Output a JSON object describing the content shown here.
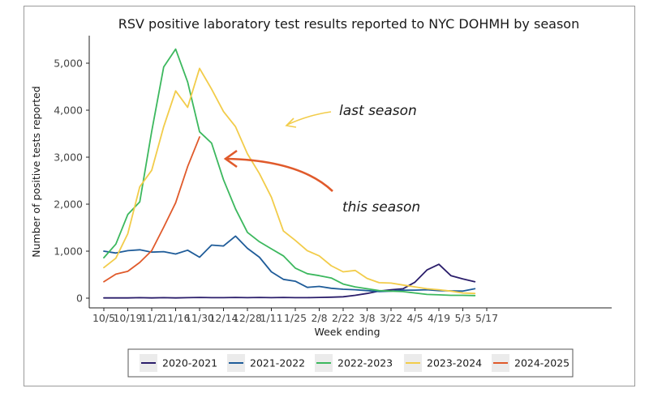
{
  "chart_data": {
    "type": "line",
    "title": "RSV positive laboratory test results reported to NYC DOHMH by season",
    "xlabel": "Week ending",
    "ylabel": "Number of positive tests reported",
    "ylim": [
      0,
      5500
    ],
    "yticks": [
      0,
      1000,
      2000,
      3000,
      4000,
      5000
    ],
    "ytick_labels": [
      "0",
      "1,000",
      "2,000",
      "3,000",
      "4,000",
      "5,000"
    ],
    "xtick_labels": [
      "10/5",
      "10/19",
      "11/2",
      "11/16",
      "11/30",
      "12/14",
      "12/28",
      "1/11",
      "1/25",
      "2/8",
      "2/22",
      "3/8",
      "3/22",
      "4/5",
      "4/19",
      "5/3",
      "5/17"
    ],
    "grid": false,
    "legend_position": "bottom",
    "series": [
      {
        "name": "2020-2021",
        "color": "#2b1e6b",
        "values": [
          5,
          5,
          5,
          10,
          5,
          10,
          5,
          10,
          15,
          10,
          10,
          15,
          10,
          15,
          10,
          15,
          10,
          10,
          15,
          20,
          30,
          60,
          100,
          150,
          180,
          200,
          340,
          600,
          720,
          480,
          410,
          350
        ]
      },
      {
        "name": "2021-2022",
        "color": "#1f5c99",
        "values": [
          1000,
          960,
          1010,
          1030,
          980,
          990,
          940,
          1020,
          870,
          1130,
          1110,
          1320,
          1060,
          870,
          560,
          400,
          360,
          230,
          250,
          210,
          190,
          180,
          160,
          140,
          150,
          170,
          170,
          180,
          160,
          155,
          150,
          200
        ]
      },
      {
        "name": "2022-2023",
        "color": "#3cb85e",
        "values": [
          860,
          1150,
          1780,
          2050,
          3550,
          4920,
          5300,
          4600,
          3540,
          3300,
          2520,
          1900,
          1400,
          1200,
          1050,
          900,
          640,
          520,
          480,
          430,
          300,
          240,
          200,
          160,
          150,
          140,
          110,
          80,
          70,
          60,
          60,
          55
        ]
      },
      {
        "name": "2023-2024",
        "color": "#f2cc4a",
        "values": [
          650,
          850,
          1370,
          2370,
          2720,
          3650,
          4410,
          4060,
          4890,
          4450,
          3970,
          3650,
          3070,
          2650,
          2150,
          1430,
          1230,
          1010,
          900,
          690,
          560,
          590,
          420,
          330,
          320,
          280,
          240,
          200,
          180,
          150,
          110,
          100
        ]
      },
      {
        "name": "2024-2025",
        "color": "#e05a2b",
        "values": [
          350,
          510,
          570,
          760,
          1010,
          1510,
          2030,
          2800,
          3430
        ]
      }
    ],
    "annotations": [
      {
        "text": "last season",
        "color": "#1a1a1a",
        "arrow_color": "#f2cc4a"
      },
      {
        "text": "this season",
        "color": "#1a1a1a",
        "arrow_color": "#e05a2b"
      }
    ]
  }
}
